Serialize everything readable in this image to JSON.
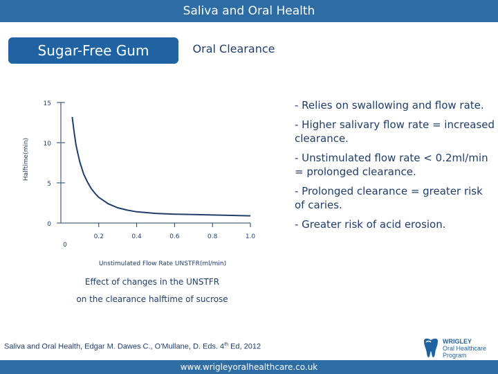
{
  "header": {
    "title": "Saliva and Oral Health"
  },
  "tabs": [
    {
      "label": "Sugar-Free Gum",
      "active": true
    },
    {
      "label": "Oral Clearance",
      "active": false
    }
  ],
  "bullets": [
    "- Relies on swallowing and flow rate.",
    "- Higher salivary flow rate = increased clearance.",
    "- Unstimulated flow rate < 0.2ml/min = prolonged clearance.",
    "- Prolonged clearance = greater risk of caries.",
    "- Greater risk of acid erosion."
  ],
  "chart_data": {
    "type": "line",
    "xlabel": "Unstimulated Flow Rate UNSTFR(ml/min)",
    "ylabel": "Halftime(min)",
    "x_origin_label": "0",
    "x_ticks": [
      {
        "value": 0.2,
        "label": "0.2"
      },
      {
        "value": 0.4,
        "label": "0.4"
      },
      {
        "value": 0.6,
        "label": "0.6"
      },
      {
        "value": 0.8,
        "label": "0.8"
      },
      {
        "value": 1.0,
        "label": "1.0"
      }
    ],
    "y_ticks": [
      {
        "value": 0,
        "label": "0"
      },
      {
        "value": 5,
        "label": "5"
      },
      {
        "value": 10,
        "label": "10"
      },
      {
        "value": 15,
        "label": "15"
      }
    ],
    "xlim": [
      0,
      1.0
    ],
    "ylim": [
      0,
      15
    ],
    "series": [
      {
        "name": "Halftime",
        "color": "#1f3d6b",
        "x": [
          0.06,
          0.07,
          0.08,
          0.09,
          0.1,
          0.12,
          0.14,
          0.16,
          0.18,
          0.2,
          0.25,
          0.3,
          0.35,
          0.4,
          0.5,
          0.6,
          0.7,
          0.8,
          0.9,
          1.0
        ],
        "y": [
          13.2,
          11.3,
          9.7,
          8.6,
          7.6,
          6.1,
          5.1,
          4.3,
          3.7,
          3.2,
          2.4,
          1.9,
          1.6,
          1.4,
          1.2,
          1.1,
          1.05,
          1.0,
          0.95,
          0.9
        ]
      }
    ]
  },
  "captions": {
    "line1": "Effect of changes in the UNSTFR",
    "line2": "on the clearance halftime of sucrose"
  },
  "reference": {
    "before": "Saliva and Oral Health, Edgar M. Dawes C., O'Mullane, D.  Eds. 4",
    "sup": "th",
    "after": " Ed, 2012"
  },
  "logo": {
    "line1": "WRIGLEY",
    "line2": "Oral Healthcare",
    "line3": "Program"
  },
  "footer": {
    "url": "www.wrigleyoralhealthcare.co.uk"
  }
}
